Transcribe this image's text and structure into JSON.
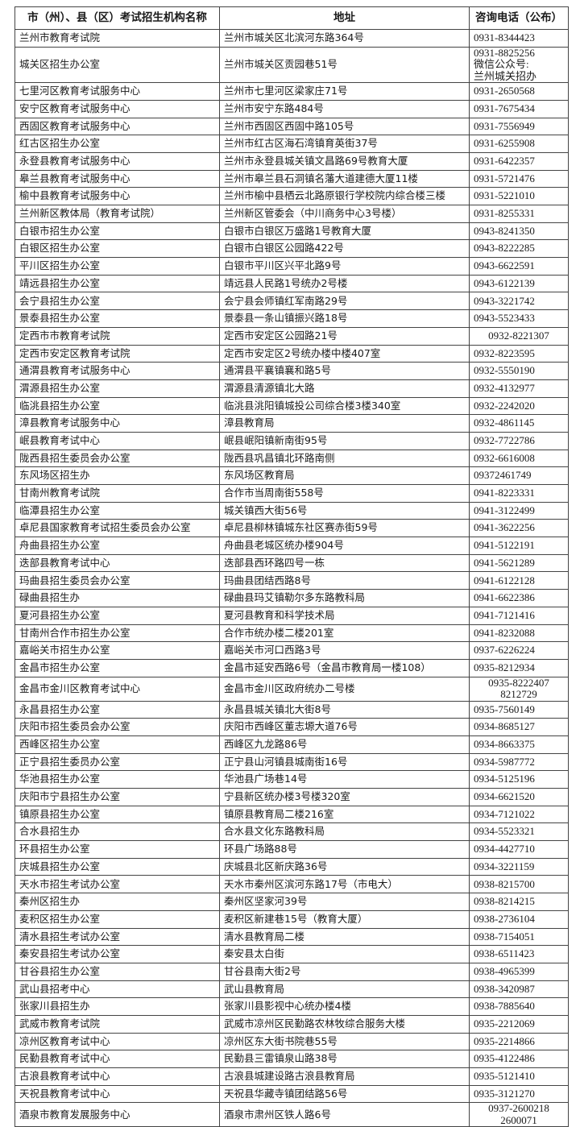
{
  "table": {
    "headers": [
      "市（州）、县（区）考试招生机构名称",
      "地址",
      "咨询电话（公布）"
    ],
    "rows": [
      [
        "兰州市教育考试院",
        "兰州市城关区北滨河东路364号",
        "0931-8344423"
      ],
      [
        "城关区招生办公室",
        "兰州市城关区贡园巷51号",
        "0931-8825256\n微信公众号:\n兰州城关招办"
      ],
      [
        "七里河区教育考试服务中心",
        "兰州市七里河区梁家庄71号",
        "0931-2650568"
      ],
      [
        "安宁区教育考试服务中心",
        "兰州市安宁东路484号",
        "0931-7675434"
      ],
      [
        "西固区教育考试服务中心",
        "兰州市西固区西固中路105号",
        "0931-7556949"
      ],
      [
        "红古区招生办公室",
        "兰州市红古区海石湾镇育英街37号",
        "0931-6255908"
      ],
      [
        "永登县教育考试服务中心",
        "兰州市永登县城关镇文昌路69号教育大厦",
        "0931-6422357"
      ],
      [
        "皋兰县教育考试服务中心",
        "兰州市皋兰县石洞镇名藩大道建德大厦11楼",
        "0931-5721476"
      ],
      [
        "榆中县教育考试服务中心",
        "兰州市榆中县栖云北路原银行学校院内综合楼三楼",
        "0931-5221010"
      ],
      [
        "兰州新区教体局（教育考试院）",
        "兰州新区管委会（中川商务中心3号楼）",
        "0931-8255331"
      ],
      [
        "白银市招生办公室",
        "白银市白银区万盛路1号教育大厦",
        "0943-8241350"
      ],
      [
        "白银区招生办公室",
        "白银市白银区公园路422号",
        "0943-8222285"
      ],
      [
        "平川区招生办公室",
        "白银市平川区兴平北路9号",
        "0943-6622591"
      ],
      [
        "靖远县招生办公室",
        "靖远县人民路1号统办2号楼",
        "0943-6122139"
      ],
      [
        "会宁县招生办公室",
        "会宁县会师镇红军南路29号",
        "0943-3221742"
      ],
      [
        "景泰县招生办公室",
        "景泰县一条山镇振兴路18号",
        "0943-5523433"
      ],
      [
        "定西市市教育考试院",
        "定西市安定区公园路21号",
        "0932-8221307"
      ],
      [
        "定西市安定区教育考试院",
        "定西市安定区2号统办楼中楼407室",
        "0932-8223595"
      ],
      [
        "通渭县教育考试服务中心",
        "通渭县平襄镇襄和路5号",
        "0932-5550190"
      ],
      [
        "渭源县招生办公室",
        "渭源县清源镇北大路",
        "0932-4132977"
      ],
      [
        "临洮县招生办公室",
        "临洮县洮阳镇城投公司综合楼3楼340室",
        "0932-2242020"
      ],
      [
        "漳县教育考试服务中心",
        "漳县教育局",
        "0932-4861145"
      ],
      [
        "岷县教育考试中心",
        "岷县岷阳镇新南街95号",
        "0932-7722786"
      ],
      [
        "陇西县招生委员会办公室",
        "陇西县巩昌镇北环路南侧",
        "0932-6616008"
      ],
      [
        "东风场区招生办",
        "东风场区教育局",
        "09372461749"
      ],
      [
        "甘南州教育考试院",
        "合作市当周南街558号",
        "0941-8223331"
      ],
      [
        "临潭县招生办公室",
        "城关镇西大街56号",
        "0941-3122499"
      ],
      [
        "卓尼县国家教育考试招生委员会办公室",
        "卓尼县柳林镇城东社区赛赤街59号",
        "0941-3622256"
      ],
      [
        "舟曲县招生办公室",
        "舟曲县老城区统办楼904号",
        "0941-5122191"
      ],
      [
        "迭部县教育考试中心",
        "迭部县西环路四号一栋",
        "0941-5621289"
      ],
      [
        "玛曲县招生委员会办公室",
        "玛曲县团结西路8号",
        "0941-6122128"
      ],
      [
        "碌曲县招生办",
        "碌曲县玛艾镇勒尔多东路教科局",
        "0941-6622386"
      ],
      [
        "夏河县招生办公室",
        "夏河县教育和科学技术局",
        "0941-7121416"
      ],
      [
        "甘南州合作市招生办公室",
        "合作市统办楼二楼201室",
        "0941-8232088"
      ],
      [
        "嘉峪关市招生办公室",
        "嘉峪关市河口西路3号",
        "0937-6226224"
      ],
      [
        "金昌市招生办公室",
        "金昌市延安西路6号（金昌市教育局一楼108）",
        "0935-8212934"
      ],
      [
        "金昌市金川区教育考试中心",
        "金昌市金川区政府统办二号楼",
        "0935-8222407\n8212729"
      ],
      [
        "永昌县招生办公室",
        "永昌县城关镇北大街8号",
        "0935-7560149"
      ],
      [
        "庆阳市招生委员会办公室",
        "庆阳市西峰区董志塬大道76号",
        "0934-8685127"
      ],
      [
        "西峰区招生办公室",
        "西峰区九龙路86号",
        "0934-8663375"
      ],
      [
        "正宁县招生委员办公室",
        "正宁县山河镇县城南街16号",
        "0934-5987772"
      ],
      [
        "华池县招生办公室",
        "华池县广场巷14号",
        "0934-5125196"
      ],
      [
        "庆阳市宁县招生办公室",
        "宁县新区统办楼3号楼320室",
        "0934-6621520"
      ],
      [
        "镇原县招生办公室",
        "镇原县教育局二楼216室",
        "0934-7121022"
      ],
      [
        "合水县招生办",
        "合水县文化东路教科局",
        "0934-5523321"
      ],
      [
        "环县招生办公室",
        "环县广场路88号",
        "0934-4427710"
      ],
      [
        "庆城县招生办公室",
        "庆城县北区新庆路36号",
        "0934-3221159"
      ],
      [
        "天水市招生考试办公室",
        "天水市秦州区滨河东路17号（市电大）",
        "0938-8215700"
      ],
      [
        "秦州区招生办",
        "秦州区坚家河39号",
        "0938-8214215"
      ],
      [
        "麦积区招生办公室",
        "麦积区新建巷15号（教育大厦）",
        "0938-2736104"
      ],
      [
        "清水县招生考试办公室",
        "清水县教育局二楼",
        "0938-7154051"
      ],
      [
        "秦安县招生考试办公室",
        "秦安县太白街",
        "0938-6511423"
      ],
      [
        "甘谷县招生办公室",
        "甘谷县南大街2号",
        "0938-4965399"
      ],
      [
        "武山县招考中心",
        "武山县教育局",
        "0938-3420987"
      ],
      [
        "张家川县招生办",
        "张家川县影视中心统办楼4楼",
        "0938-7885640"
      ],
      [
        "武威市教育考试院",
        "武威市凉州区民勤路农林牧综合服务大楼",
        "0935-2212069"
      ],
      [
        "凉州区教育考试中心",
        "凉州区东大街书院巷55号",
        "0935-2214866"
      ],
      [
        "民勤县教育考试中心",
        "民勤县三雷镇泉山路38号",
        "0935-4122486"
      ],
      [
        "古浪县教育考试中心",
        "古浪县城建设路古浪县教育局",
        "0935-5121410"
      ],
      [
        "天祝县教育考试中心",
        "天祝县华藏寺镇团结路56号",
        "0935-3121270"
      ],
      [
        "酒泉市教育发展服务中心",
        "酒泉市肃州区铁人路6号",
        "0937-2600218\n2600071"
      ]
    ]
  }
}
